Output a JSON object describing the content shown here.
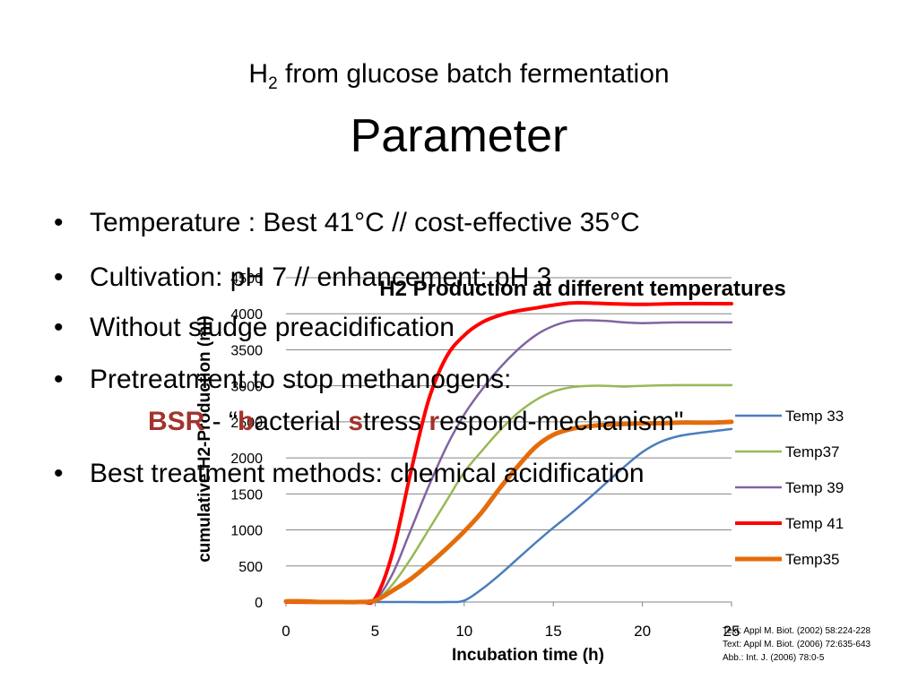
{
  "slide": {
    "title_prefix": "H",
    "title_sub": "2",
    "title_rest": " from glucose batch fermentation",
    "subtitle": "Parameter",
    "bullets": [
      "Temperature : Best 41°C  //  cost-effective 35°C",
      "Cultivation: pH 7   //   enhancement: pH 3",
      "Without sludge preacidification",
      "Pretreatment to stop methanogens:",
      "Best treatment methods: chemical acidification"
    ],
    "bullet_glyph": "•",
    "bsr": {
      "acronym": "BSR",
      "sep": " - “",
      "b": "b",
      "w1": "acterial ",
      "s": "s",
      "w2": "tress ",
      "r": "r",
      "w3": "espond-mechanism\""
    },
    "sources": [
      "Text: Appl M. Biot. (2002) 58:224-228",
      "Text: Appl M. Biot. (2006) 72:635-643",
      "Abb.: Int. J. (2006) 78:0-5"
    ]
  },
  "chart_data": {
    "type": "line",
    "title": "H2 Production at different temperatures",
    "xlabel": "Incubation time (h)",
    "ylabel": "cumulative H2-Production (ml)",
    "xlim": [
      0,
      25
    ],
    "ylim": [
      0,
      4500
    ],
    "xticks": [
      0,
      5,
      10,
      15,
      20,
      25
    ],
    "yticks": [
      0,
      500,
      1000,
      1500,
      2000,
      2500,
      3000,
      3500,
      4000,
      4500
    ],
    "grid": "horizontal",
    "legend_position": "right",
    "series": [
      {
        "name": "Temp 33",
        "color": "#4a7ebb",
        "width": 2.5,
        "x": [
          0,
          2,
          5,
          7,
          9,
          10,
          11,
          12,
          13,
          14,
          15,
          16,
          17,
          18,
          19,
          20,
          21,
          22,
          23,
          24,
          25
        ],
        "y": [
          0,
          0,
          0,
          0,
          0,
          20,
          180,
          380,
          600,
          820,
          1030,
          1230,
          1440,
          1660,
          1880,
          2080,
          2220,
          2300,
          2340,
          2370,
          2400
        ]
      },
      {
        "name": "Temp37",
        "color": "#98b954",
        "width": 2.5,
        "x": [
          0,
          4,
          5,
          6,
          7,
          8,
          9,
          10,
          11,
          12,
          13,
          14,
          15,
          16,
          17,
          18,
          19,
          20,
          22,
          25
        ],
        "y": [
          0,
          0,
          20,
          250,
          600,
          1000,
          1400,
          1800,
          2100,
          2380,
          2620,
          2800,
          2920,
          2980,
          3000,
          3000,
          2990,
          3000,
          3010,
          3010
        ]
      },
      {
        "name": "Temp 39",
        "color": "#8064a2",
        "width": 2.5,
        "x": [
          0,
          4,
          5,
          6,
          7,
          8,
          9,
          10,
          11,
          12,
          13,
          14,
          15,
          16,
          17,
          18,
          19,
          20,
          22,
          25
        ],
        "y": [
          0,
          0,
          30,
          400,
          1000,
          1600,
          2150,
          2600,
          2950,
          3250,
          3500,
          3700,
          3830,
          3900,
          3910,
          3900,
          3880,
          3870,
          3880,
          3880
        ]
      },
      {
        "name": "Temp 41",
        "color": "#ff0000",
        "width": 4,
        "x": [
          0,
          4,
          5,
          6,
          7,
          8,
          9,
          10,
          11,
          12,
          13,
          14,
          15,
          16,
          17,
          18,
          20,
          22,
          25
        ],
        "y": [
          0,
          0,
          50,
          700,
          1800,
          2800,
          3400,
          3700,
          3880,
          3980,
          4040,
          4080,
          4120,
          4150,
          4150,
          4140,
          4130,
          4140,
          4140
        ]
      },
      {
        "name": "Temp35",
        "color": "#e46c0a",
        "width": 5,
        "x": [
          0,
          1,
          2,
          3,
          4,
          5,
          6,
          7,
          8,
          9,
          10,
          11,
          12,
          13,
          14,
          15,
          16,
          17,
          18,
          19,
          20,
          21,
          22,
          23,
          24,
          25
        ],
        "y": [
          10,
          10,
          0,
          0,
          0,
          20,
          160,
          320,
          520,
          740,
          980,
          1250,
          1580,
          1880,
          2150,
          2320,
          2400,
          2440,
          2460,
          2470,
          2480,
          2480,
          2490,
          2490,
          2490,
          2500
        ]
      }
    ]
  }
}
